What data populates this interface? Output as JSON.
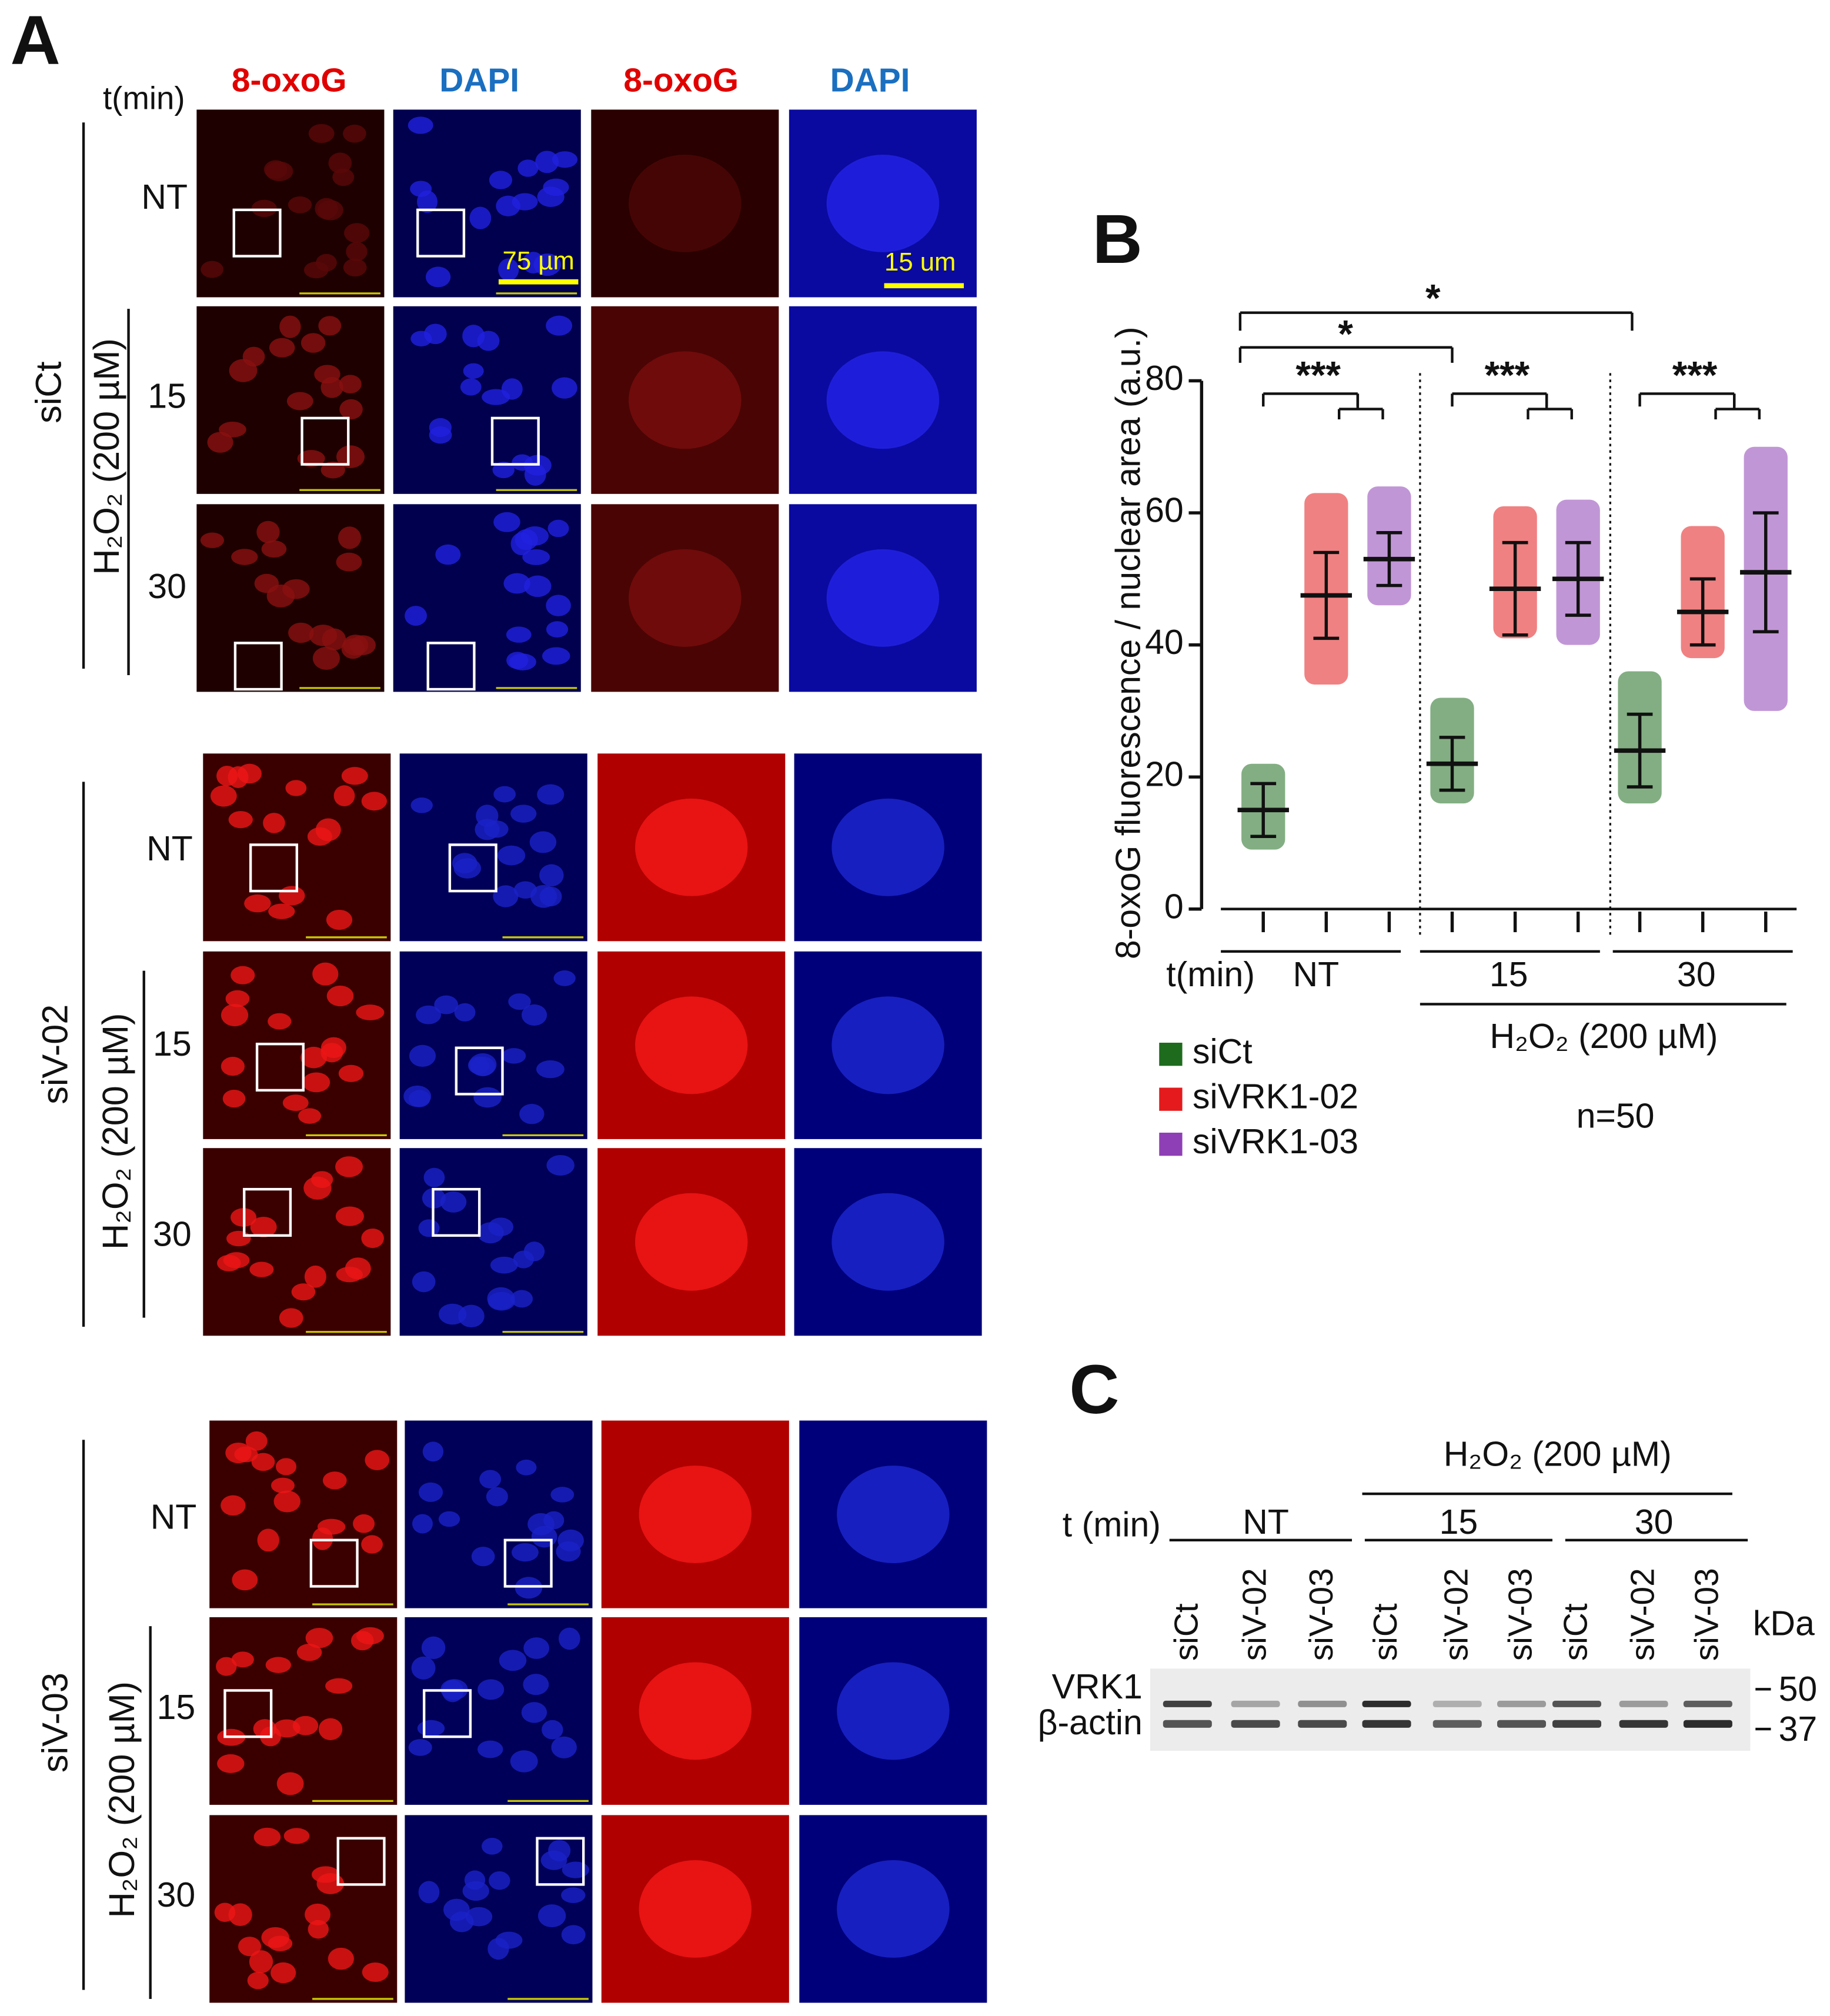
{
  "panel_a": {
    "label": "A",
    "time_header": "t(min)",
    "columns": [
      "8-oxoG",
      "DAPI",
      "8-oxoG",
      "DAPI"
    ],
    "groups": [
      {
        "name": "siCt",
        "treatment": "H₂O₂ (200 µM)",
        "rows": [
          "NT",
          "15",
          "30"
        ]
      },
      {
        "name": "siV-02",
        "treatment": "H₂O₂ (200 µM)",
        "rows": [
          "NT",
          "15",
          "30"
        ]
      },
      {
        "name": "siV-03",
        "treatment": "H₂O₂ (200 µM)",
        "rows": [
          "NT",
          "15",
          "30"
        ]
      }
    ],
    "scale_bars": [
      "75 µm",
      "15 um"
    ]
  },
  "chart_data": {
    "type": "dotplot",
    "label": "B",
    "y_label": "8-oxoG fluorescence / nuclear area (a.u.)",
    "x_label": "t(min)",
    "categories": [
      "NT",
      "15",
      "30"
    ],
    "group_label": "H₂O₂ (200 µM)",
    "note": "n=50",
    "ylim": [
      0,
      80
    ],
    "yticks": [
      0,
      20,
      40,
      60,
      80
    ],
    "series": [
      {
        "name": "siCt",
        "color": "#1e6b1e",
        "values": [
          15,
          22,
          24
        ],
        "errors": [
          4,
          4,
          5.5
        ],
        "min": [
          9,
          16,
          16
        ],
        "max": [
          22,
          32,
          36
        ]
      },
      {
        "name": "siVRK1-02",
        "color": "#e41a1c",
        "values": [
          47.5,
          48.5,
          45
        ],
        "errors": [
          6.5,
          7,
          5
        ],
        "min": [
          34,
          41,
          38
        ],
        "max": [
          63,
          61,
          58
        ]
      },
      {
        "name": "siVRK1-03",
        "color": "#8e3fb5",
        "values": [
          53,
          50,
          51
        ],
        "errors": [
          4,
          5.5,
          9
        ],
        "min": [
          46,
          40,
          30
        ],
        "max": [
          64,
          62,
          70
        ]
      }
    ],
    "significance": [
      "*",
      "*",
      "***",
      "***",
      "***"
    ]
  },
  "panel_c": {
    "label": "C",
    "treatment": "H₂O₂ (200 µM)",
    "time_header": "t (min)",
    "groups": [
      "NT",
      "15",
      "30"
    ],
    "lanes": [
      "siCt",
      "siV-02",
      "siV-03",
      "siCt",
      "siV-02",
      "siV-03",
      "siCt",
      "siV-02",
      "siV-03"
    ],
    "unit": "kDa",
    "proteins": [
      "VRK1",
      "β-actin"
    ],
    "markers": [
      "50",
      "37"
    ]
  }
}
